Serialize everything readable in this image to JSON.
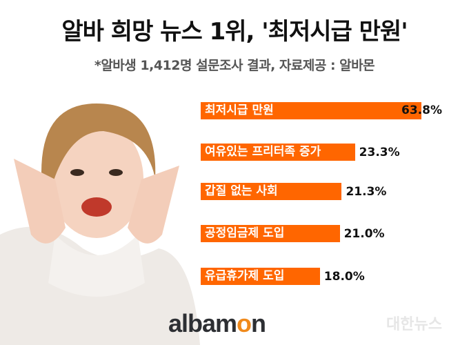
{
  "chart_data": {
    "type": "bar",
    "orientation": "horizontal",
    "title": "알바 희망 뉴스 1위, '최저시급 만원'",
    "subtitle": "*알바생 1,412명 설문조사 결과, 자료제공 : 알바몬",
    "categories": [
      "최저시급 만원",
      "여유있는 프리터족 증가",
      "갑질 없는 사회",
      "공정임금제 도입",
      "유급휴가제 도입"
    ],
    "values": [
      63.8,
      23.3,
      21.3,
      21.0,
      18.0
    ],
    "labels": [
      "63.8%",
      "23.3%",
      "21.3%",
      "21.0%",
      "18.0%"
    ],
    "bar_color": "#ff6600",
    "grid": false
  },
  "logo": {
    "text_a": "albam",
    "text_o": "o",
    "text_n": "n"
  },
  "watermark": "대한뉴스"
}
